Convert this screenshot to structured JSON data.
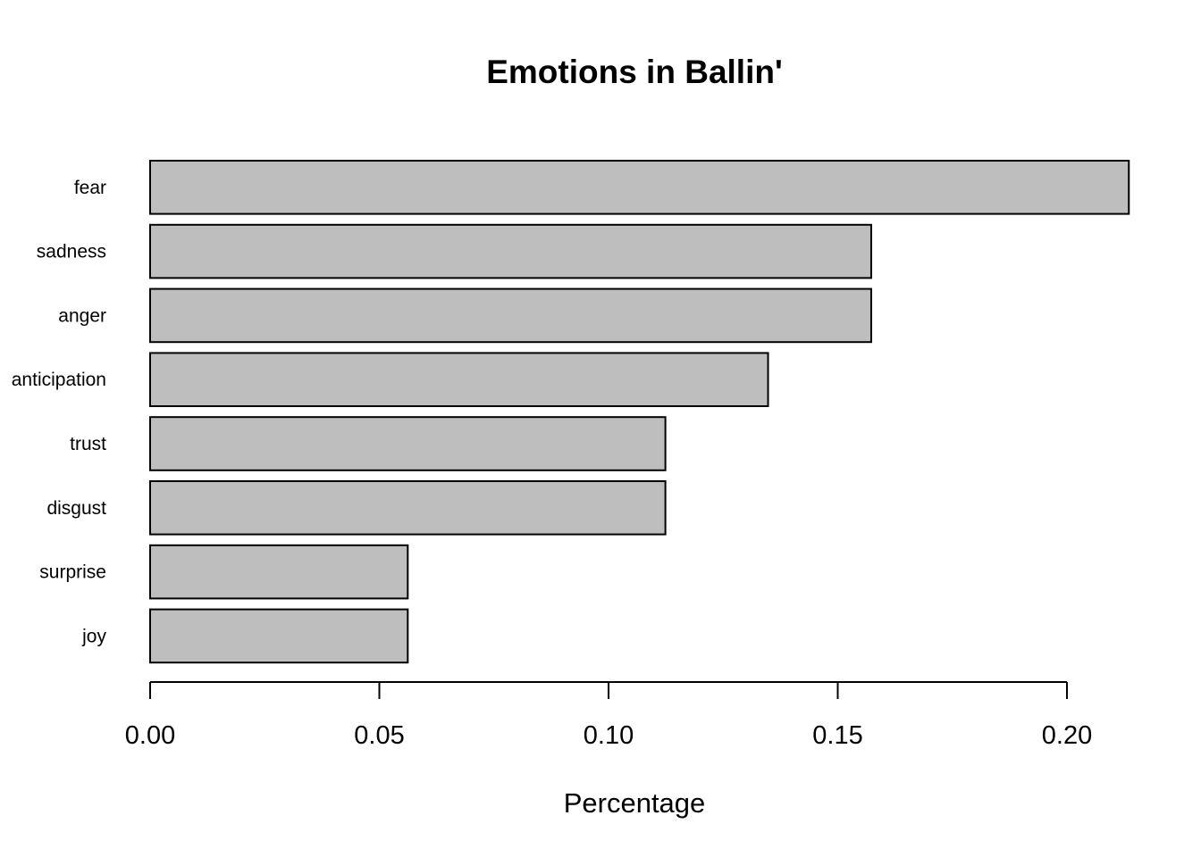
{
  "chart_data": {
    "type": "bar",
    "orientation": "horizontal",
    "title": "Emotions in Ballin'",
    "xlabel": "Percentage",
    "ylabel": "",
    "categories": [
      "fear",
      "sadness",
      "anger",
      "anticipation",
      "trust",
      "disgust",
      "surprise",
      "joy"
    ],
    "values": [
      0.2135,
      0.1573,
      0.1573,
      0.1348,
      0.1124,
      0.1124,
      0.0562,
      0.0562
    ],
    "xlim": [
      0,
      0.2135
    ],
    "xticks": [
      0.0,
      0.05,
      0.1,
      0.15,
      0.2
    ],
    "xtick_labels": [
      "0.00",
      "0.05",
      "0.10",
      "0.15",
      "0.20"
    ],
    "grid": false,
    "legend": "none",
    "colors": {
      "bar_fill": "#bebebe",
      "bar_stroke": "#000000"
    }
  }
}
